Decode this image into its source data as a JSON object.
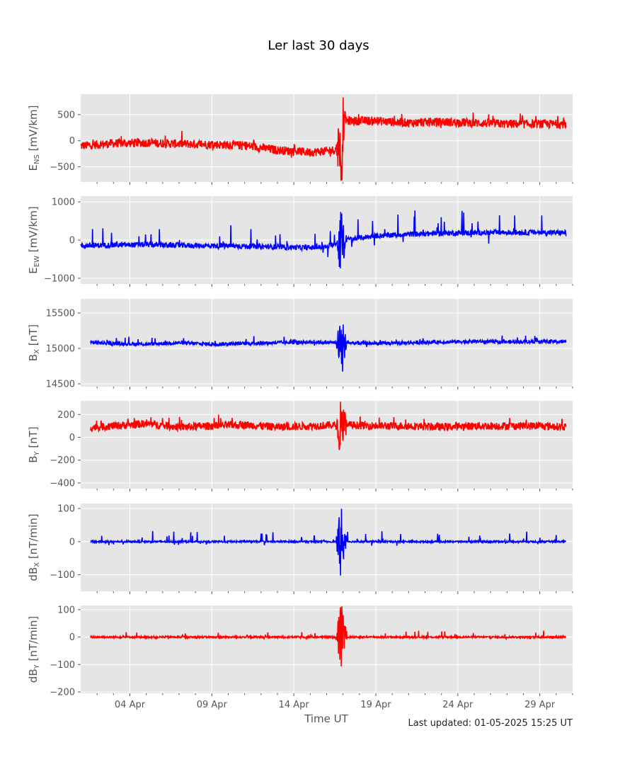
{
  "title": "Ler last 30 days",
  "xlabel": "Time UT",
  "updated": "Last updated: 01-05-2025 15:25 UT",
  "x_ticks": [
    "04 Apr",
    "09 Apr",
    "14 Apr",
    "19 Apr",
    "24 Apr",
    "29 Apr"
  ],
  "colors": {
    "red": "#ff0000",
    "blue": "#0000ff",
    "panel_bg": "#e5e5e5",
    "grid": "#ffffff"
  },
  "chart_data": [
    {
      "type": "line",
      "name": "ens",
      "ylabel_main": "E",
      "ylabel_sub": "NS",
      "ylabel_unit": " [mV/km]",
      "color": "red",
      "ylim": [
        -790,
        890
      ],
      "yticks": [
        500,
        0,
        -500
      ],
      "ytick_labels": [
        "500",
        "0",
        "−500"
      ],
      "x_range": [
        "2025-04-01",
        "2025-05-01"
      ],
      "series": [
        {
          "x": [
            "2025-04-01",
            "2025-04-03",
            "2025-04-05",
            "2025-04-07",
            "2025-04-09",
            "2025-04-11",
            "2025-04-13",
            "2025-04-15",
            "2025-04-16",
            "2025-04-17",
            "2025-04-17",
            "2025-04-19",
            "2025-04-21",
            "2025-04-23",
            "2025-04-25",
            "2025-04-27",
            "2025-04-29",
            "2025-05-01"
          ],
          "values": [
            -100,
            -50,
            -40,
            -60,
            -70,
            -90,
            -180,
            -220,
            -200,
            -150,
            380,
            380,
            340,
            360,
            340,
            320,
            320,
            320
          ]
        }
      ]
    },
    {
      "type": "line",
      "name": "eew",
      "ylabel_main": "E",
      "ylabel_sub": "EW",
      "ylabel_unit": " [mV/km]",
      "color": "blue",
      "ylim": [
        -1150,
        1150
      ],
      "yticks": [
        1000,
        0,
        -1000
      ],
      "ytick_labels": [
        "1000",
        "0",
        "−1000"
      ],
      "x_range": [
        "2025-04-01",
        "2025-05-01"
      ],
      "series": [
        {
          "x": [
            "2025-04-01",
            "2025-04-03",
            "2025-04-05",
            "2025-04-07",
            "2025-04-09",
            "2025-04-11",
            "2025-04-13",
            "2025-04-15",
            "2025-04-16",
            "2025-04-17",
            "2025-04-19",
            "2025-04-21",
            "2025-04-23",
            "2025-04-25",
            "2025-04-27",
            "2025-04-29",
            "2025-05-01"
          ],
          "values": [
            -150,
            -130,
            -120,
            -140,
            -150,
            -160,
            -180,
            -200,
            -180,
            0,
            110,
            150,
            180,
            190,
            200,
            200,
            190
          ]
        }
      ]
    },
    {
      "type": "line",
      "name": "bx",
      "ylabel_main": "B",
      "ylabel_sub": "X",
      "ylabel_unit": " [nT]",
      "color": "blue",
      "ylim": [
        14460,
        15700
      ],
      "yticks": [
        15500,
        15000,
        14500
      ],
      "ytick_labels": [
        "15500",
        "15000",
        "14500"
      ],
      "x_range": [
        "2025-04-01",
        "2025-05-01"
      ],
      "series": [
        {
          "x": [
            "2025-04-01",
            "2025-04-03",
            "2025-04-05",
            "2025-04-07",
            "2025-04-09",
            "2025-04-11",
            "2025-04-13",
            "2025-04-15",
            "2025-04-17",
            "2025-04-19",
            "2025-04-21",
            "2025-04-23",
            "2025-04-25",
            "2025-04-27",
            "2025-04-29",
            "2025-05-01"
          ],
          "values": [
            15090,
            15070,
            15060,
            15080,
            15060,
            15070,
            15080,
            15090,
            15080,
            15070,
            15080,
            15090,
            15100,
            15090,
            15100,
            15090
          ]
        }
      ]
    },
    {
      "type": "line",
      "name": "by",
      "ylabel_main": "B",
      "ylabel_sub": "Y",
      "ylabel_unit": " [nT]",
      "color": "red",
      "ylim": [
        -450,
        320
      ],
      "yticks": [
        200,
        0,
        -200,
        -400
      ],
      "ytick_labels": [
        "200",
        "0",
        "−200",
        "−400"
      ],
      "x_range": [
        "2025-04-01",
        "2025-05-01"
      ],
      "series": [
        {
          "x": [
            "2025-04-01",
            "2025-04-03",
            "2025-04-05",
            "2025-04-07",
            "2025-04-09",
            "2025-04-11",
            "2025-04-13",
            "2025-04-15",
            "2025-04-17",
            "2025-04-19",
            "2025-04-21",
            "2025-04-23",
            "2025-04-25",
            "2025-04-27",
            "2025-04-29",
            "2025-05-01"
          ],
          "values": [
            80,
            100,
            120,
            90,
            100,
            110,
            90,
            100,
            110,
            100,
            100,
            90,
            100,
            100,
            100,
            90
          ]
        }
      ]
    },
    {
      "type": "line",
      "name": "dbx",
      "ylabel_main": "dB",
      "ylabel_sub": "X",
      "ylabel_unit": " [nT/min]",
      "color": "blue",
      "ylim": [
        -150,
        115
      ],
      "yticks": [
        100,
        0,
        -100
      ],
      "ytick_labels": [
        "100",
        "0",
        "−100"
      ],
      "x_range": [
        "2025-04-01",
        "2025-05-01"
      ],
      "series": [
        {
          "x": [
            "2025-04-01",
            "2025-04-16",
            "2025-05-01"
          ],
          "values": [
            0,
            0,
            0
          ]
        }
      ]
    },
    {
      "type": "line",
      "name": "dby",
      "ylabel_main": "dB",
      "ylabel_sub": "Y",
      "ylabel_unit": " [nT/min]",
      "color": "red",
      "ylim": [
        -205,
        115
      ],
      "yticks": [
        100,
        0,
        -100,
        -200
      ],
      "ytick_labels": [
        "100",
        "0",
        "−100",
        "−200"
      ],
      "x_range": [
        "2025-04-01",
        "2025-05-01"
      ],
      "series": [
        {
          "x": [
            "2025-04-01",
            "2025-04-16",
            "2025-05-01"
          ],
          "values": [
            0,
            0,
            0
          ]
        }
      ]
    }
  ]
}
